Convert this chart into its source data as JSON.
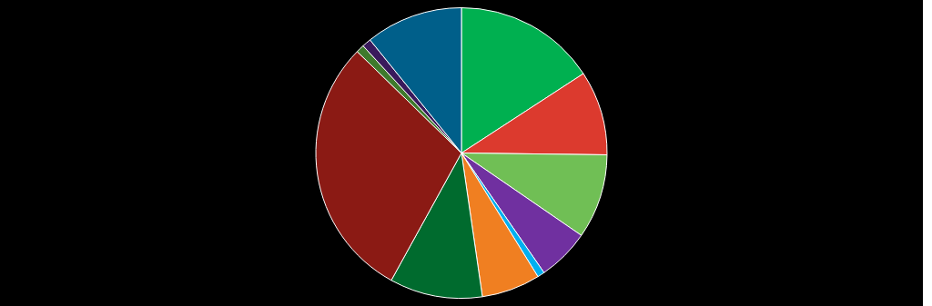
{
  "chart_data": {
    "type": "pie",
    "categories": [
      null,
      null,
      null,
      null,
      null,
      null,
      null,
      null,
      null,
      null,
      null
    ],
    "values": [
      15.8,
      9.4,
      9.4,
      5.8,
      0.8,
      6.5,
      10.3,
      29.3,
      0.9,
      1.0,
      10.8
    ],
    "colors": [
      "#00b050",
      "#dc3a2e",
      "#70bf55",
      "#7030a0",
      "#00b0f0",
      "#f07f21",
      "#006b2e",
      "#8b1a14",
      "#3f7a2c",
      "#3a1a5c",
      "#005f8a"
    ]
  }
}
